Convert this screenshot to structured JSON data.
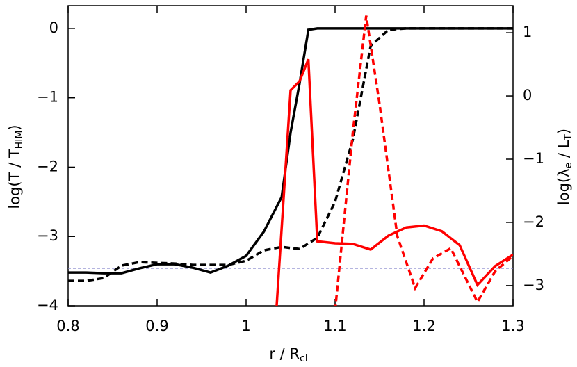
{
  "chart_data": {
    "type": "line",
    "x_label": {
      "main": "r / R",
      "sub": "cl"
    },
    "y_label": {
      "pre": "log(T / T",
      "sub": "HIM",
      "post": ")"
    },
    "y2_label": {
      "pre": "log(λ",
      "sub1": "e",
      "mid": " / L",
      "sub2": "T",
      "post": ")"
    },
    "xlim": [
      0.8,
      1.3
    ],
    "xticks": [
      0.8,
      0.9,
      1.0,
      1.1,
      1.2,
      1.3
    ],
    "ylim": [
      -4,
      0.33
    ],
    "yticks": [
      -4,
      -3,
      -2,
      -1,
      0
    ],
    "y2lim": [
      -3.32,
      1.43
    ],
    "y2ticks": [
      -3,
      -2,
      -1,
      0,
      1
    ],
    "hline": {
      "value": -3.46,
      "color": "#8888cc"
    },
    "series": [
      {
        "color": "#000000",
        "dash": false,
        "x": [
          0.8,
          0.82,
          0.84,
          0.86,
          0.88,
          0.9,
          0.92,
          0.94,
          0.96,
          0.98,
          1.0,
          1.02,
          1.04,
          1.05,
          1.06,
          1.07,
          1.08,
          1.1,
          1.3
        ],
        "values": [
          -3.52,
          -3.52,
          -3.53,
          -3.53,
          -3.46,
          -3.4,
          -3.4,
          -3.45,
          -3.52,
          -3.42,
          -3.28,
          -2.93,
          -2.43,
          -1.5,
          -0.8,
          -0.02,
          0,
          0,
          0
        ]
      },
      {
        "color": "#000000",
        "dash": true,
        "x": [
          0.8,
          0.82,
          0.84,
          0.86,
          0.88,
          0.9,
          0.92,
          0.94,
          0.96,
          0.98,
          1.0,
          1.02,
          1.04,
          1.06,
          1.08,
          1.1,
          1.12,
          1.14,
          1.16,
          1.18,
          1.3
        ],
        "values": [
          -3.64,
          -3.64,
          -3.6,
          -3.42,
          -3.37,
          -3.38,
          -3.39,
          -3.41,
          -3.41,
          -3.41,
          -3.35,
          -3.2,
          -3.15,
          -3.18,
          -3.02,
          -2.5,
          -1.6,
          -0.25,
          -0.02,
          0,
          0
        ]
      },
      {
        "color": "#ff0000",
        "dash": false,
        "axis": "y2",
        "x": [
          1.034,
          1.05,
          1.06,
          1.07,
          1.08,
          1.1,
          1.12,
          1.14,
          1.16,
          1.18,
          1.2,
          1.22,
          1.24,
          1.26,
          1.28,
          1.3
        ],
        "values": [
          -3.4,
          0.09,
          0.23,
          0.58,
          -2.3,
          -2.33,
          -2.34,
          -2.43,
          -2.21,
          -2.08,
          -2.05,
          -2.14,
          -2.36,
          -2.99,
          -2.69,
          -2.51
        ]
      },
      {
        "color": "#ff0000",
        "dash": true,
        "axis": "y2",
        "x": [
          1.1,
          1.12,
          1.135,
          1.15,
          1.17,
          1.19,
          1.21,
          1.23,
          1.26,
          1.28,
          1.3
        ],
        "values": [
          -3.4,
          -0.57,
          1.27,
          -0.13,
          -2.22,
          -3.04,
          -2.57,
          -2.41,
          -3.26,
          -2.77,
          -2.53
        ]
      }
    ]
  }
}
